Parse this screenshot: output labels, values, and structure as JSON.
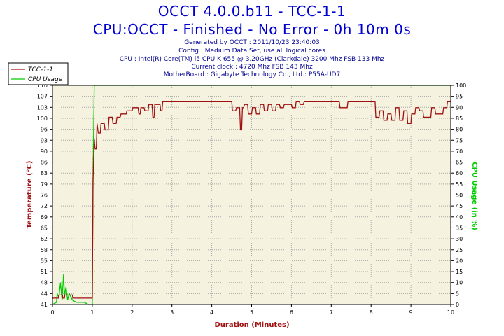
{
  "chart_data": {
    "type": "line",
    "title": "OCCT 4.0.0.b11 - TCC-1-1",
    "subtitle": "CPU:OCCT - Finished - No Error - 0h 10m 0s",
    "info_lines": [
      "Generated by OCCT : 2011/10/23 23:40:03",
      "Config : Medium Data Set, use all logical cores",
      "CPU : Intel(R) Core(TM) i5 CPU K 655 @ 3.20GHz (Clarkdale) 3200 Mhz FSB 133 Mhz",
      "Current clock : 4720 Mhz FSB 143 Mhz",
      "MotherBoard : Gigabyte Technology Co., Ltd.: P55A-UD7"
    ],
    "xlabel": "Duration (Minutes)",
    "ylabel": "Temperature (°C)",
    "y2label": "CPU Usage (in %)",
    "xlim": [
      0,
      10
    ],
    "ylim": [
      41,
      110
    ],
    "y2lim": [
      0,
      100
    ],
    "x_ticks": [
      "0",
      "1",
      "2",
      "3",
      "4",
      "5",
      "6",
      "7",
      "8",
      "9",
      "10"
    ],
    "y_ticks": [
      "41",
      "44",
      "48",
      "51",
      "55",
      "58",
      "62",
      "65",
      "69",
      "72",
      "76",
      "79",
      "83",
      "86",
      "90",
      "93",
      "96",
      "100",
      "103",
      "107",
      "110"
    ],
    "y2_ticks": [
      "0",
      "5",
      "10",
      "15",
      "20",
      "25",
      "30",
      "35",
      "40",
      "45",
      "50",
      "55",
      "60",
      "65",
      "70",
      "75",
      "80",
      "85",
      "90",
      "95",
      "100"
    ],
    "grid": true,
    "legend_position": "top-left",
    "colors": {
      "temperature": "#a01010",
      "cpu_usage": "#00cc00",
      "background": "#f5f3df",
      "grid": "#a8a8a8"
    },
    "series": [
      {
        "name": "TCC-1-1",
        "axis": "left",
        "x": [
          0,
          0.15,
          0.16,
          0.25,
          0.26,
          0.3,
          0.31,
          0.5,
          0.51,
          0.55,
          0.56,
          1.0,
          1.02,
          1.05,
          1.07,
          1.1,
          1.12,
          1.15,
          1.2,
          1.22,
          1.3,
          1.32,
          1.4,
          1.42,
          1.5,
          1.52,
          1.6,
          1.62,
          1.7,
          1.72,
          1.85,
          1.87,
          2.0,
          2.02,
          2.15,
          2.17,
          2.2,
          2.22,
          2.3,
          2.32,
          2.4,
          2.42,
          2.5,
          2.52,
          2.55,
          2.57,
          2.7,
          2.72,
          2.75,
          2.77,
          2.9,
          2.92,
          4.5,
          4.52,
          4.6,
          4.62,
          4.7,
          4.72,
          4.75,
          4.77,
          4.8,
          4.82,
          4.9,
          4.92,
          5.0,
          5.02,
          5.1,
          5.12,
          5.2,
          5.22,
          5.3,
          5.32,
          5.4,
          5.42,
          5.5,
          5.52,
          5.6,
          5.62,
          5.7,
          5.72,
          5.8,
          5.82,
          6.0,
          6.02,
          6.1,
          6.12,
          6.2,
          6.22,
          6.3,
          6.32,
          6.4,
          6.42,
          6.6,
          6.62,
          6.7,
          6.72,
          7.0,
          7.02,
          7.2,
          7.22,
          7.4,
          7.42,
          8.1,
          8.12,
          8.2,
          8.22,
          8.3,
          8.32,
          8.4,
          8.42,
          8.5,
          8.52,
          8.6,
          8.62,
          8.7,
          8.72,
          8.8,
          8.82,
          8.9,
          8.92,
          9.0,
          9.02,
          9.1,
          9.12,
          9.2,
          9.22,
          9.3,
          9.32,
          9.5,
          9.52,
          9.6,
          9.62,
          9.8,
          9.82,
          9.9,
          9.92,
          10.0
        ],
        "values": [
          43,
          43,
          44,
          44,
          43,
          43,
          44,
          44,
          43,
          43,
          43,
          43,
          80,
          93,
          90,
          90,
          98,
          95,
          95,
          98,
          98,
          96,
          96,
          100,
          100,
          98,
          98,
          100,
          100,
          101,
          101,
          102,
          102,
          103,
          103,
          101,
          101,
          103,
          103,
          102,
          102,
          104,
          104,
          100,
          100,
          104,
          104,
          102,
          102,
          105,
          105,
          105,
          105,
          102,
          102,
          103,
          103,
          96,
          96,
          103,
          103,
          104,
          104,
          101,
          101,
          103,
          103,
          101,
          101,
          104,
          104,
          102,
          102,
          104,
          104,
          102,
          102,
          104,
          104,
          103,
          103,
          104,
          104,
          103,
          103,
          105,
          105,
          104,
          104,
          105,
          105,
          105,
          105,
          105,
          105,
          105,
          105,
          105,
          105,
          103,
          103,
          105,
          105,
          100,
          100,
          102,
          102,
          99,
          99,
          101,
          101,
          99,
          99,
          103,
          103,
          99,
          99,
          102,
          102,
          98,
          98,
          101,
          101,
          103,
          103,
          102,
          102,
          100,
          100,
          103,
          103,
          101,
          101,
          103,
          103,
          105,
          105
        ]
      },
      {
        "name": "CPU Usage",
        "axis": "right",
        "x": [
          0,
          0.1,
          0.12,
          0.16,
          0.2,
          0.24,
          0.28,
          0.3,
          0.34,
          0.38,
          0.42,
          0.5,
          0.6,
          0.7,
          0.8,
          0.9,
          1.0,
          1.02,
          1.05,
          1.08,
          1.1,
          1.2,
          1.5,
          2.0,
          3.0,
          4.0,
          5.0,
          6.0,
          7.0,
          8.0,
          9.0,
          10.0
        ],
        "values": [
          0,
          1,
          5,
          3,
          10,
          2,
          14,
          4,
          8,
          2,
          5,
          2,
          1,
          1,
          1,
          0,
          0,
          60,
          100,
          100,
          100,
          100,
          100,
          100,
          100,
          100,
          100,
          100,
          100,
          100,
          100,
          100
        ]
      }
    ]
  }
}
